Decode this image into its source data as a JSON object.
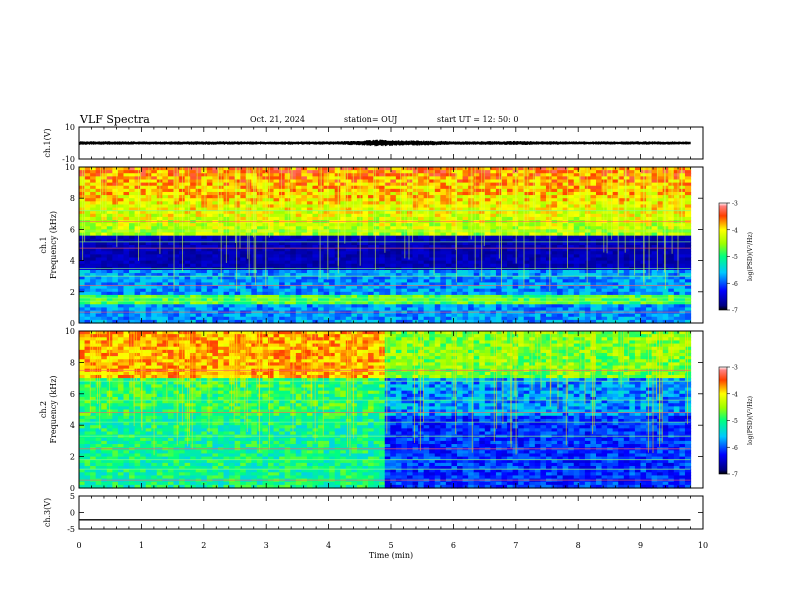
{
  "header": {
    "title": "VLF Spectra",
    "date": "Oct. 21, 2024",
    "station": "station= OUJ",
    "start": "start UT =  12: 50: 0"
  },
  "chart_data": [
    {
      "type": "line",
      "panel": "ch1-waveform",
      "ylabel": "ch.1(V)",
      "yticks": [
        "10",
        "-10"
      ],
      "ylim": [
        -10,
        10
      ],
      "xlim": [
        0,
        10
      ],
      "x": [
        0,
        1,
        2,
        3,
        4,
        4.5,
        4.8,
        5,
        5.5,
        6,
        7,
        8,
        9,
        9.8
      ],
      "y": [
        0,
        0,
        0,
        0,
        0,
        0,
        0,
        0,
        0,
        0,
        0,
        0,
        0,
        0
      ],
      "envelope": [
        1.2,
        1.0,
        1.1,
        1.0,
        1.1,
        1.4,
        2.2,
        1.8,
        1.6,
        1.1,
        1.3,
        1.0,
        1.1,
        1.0
      ],
      "color": "#000000"
    },
    {
      "type": "heatmap",
      "panel": "ch1-spectrogram",
      "ylabel": "ch.1\nFrequency (kHz)",
      "yticks": [
        "0",
        "2",
        "4",
        "6",
        "8",
        "10"
      ],
      "ylim": [
        0,
        10
      ],
      "xlim": [
        0,
        10
      ],
      "colorbar": {
        "label": "log(PSD)(V²/Hz)",
        "ticks": [
          "-3",
          "-4",
          "-5",
          "-6",
          "-7"
        ],
        "range": [
          -7,
          -3
        ]
      }
    },
    {
      "type": "heatmap",
      "panel": "ch2-spectrogram",
      "ylabel": "ch.2\nFrequency (kHz)",
      "yticks": [
        "0",
        "2",
        "4",
        "6",
        "8",
        "10"
      ],
      "ylim": [
        0,
        10
      ],
      "xlim": [
        0,
        10
      ],
      "colorbar": {
        "label": "log(PSD)(V²/Hz)",
        "ticks": [
          "-3",
          "-4",
          "-5",
          "-6",
          "-7"
        ],
        "range": [
          -7,
          -3
        ]
      }
    },
    {
      "type": "line",
      "panel": "ch3-waveform",
      "ylabel": "ch.3(V)",
      "yticks": [
        "5",
        "0",
        "-5"
      ],
      "ylim": [
        -5,
        5
      ],
      "xlim": [
        0,
        10
      ],
      "x": [
        0,
        9.8
      ],
      "y": [
        -2.2,
        -2.2
      ],
      "color": "#000000"
    }
  ],
  "xaxis": {
    "label": "Time (min)",
    "ticks": [
      "0",
      "1",
      "2",
      "3",
      "4",
      "5",
      "6",
      "7",
      "8",
      "9",
      "10"
    ]
  }
}
